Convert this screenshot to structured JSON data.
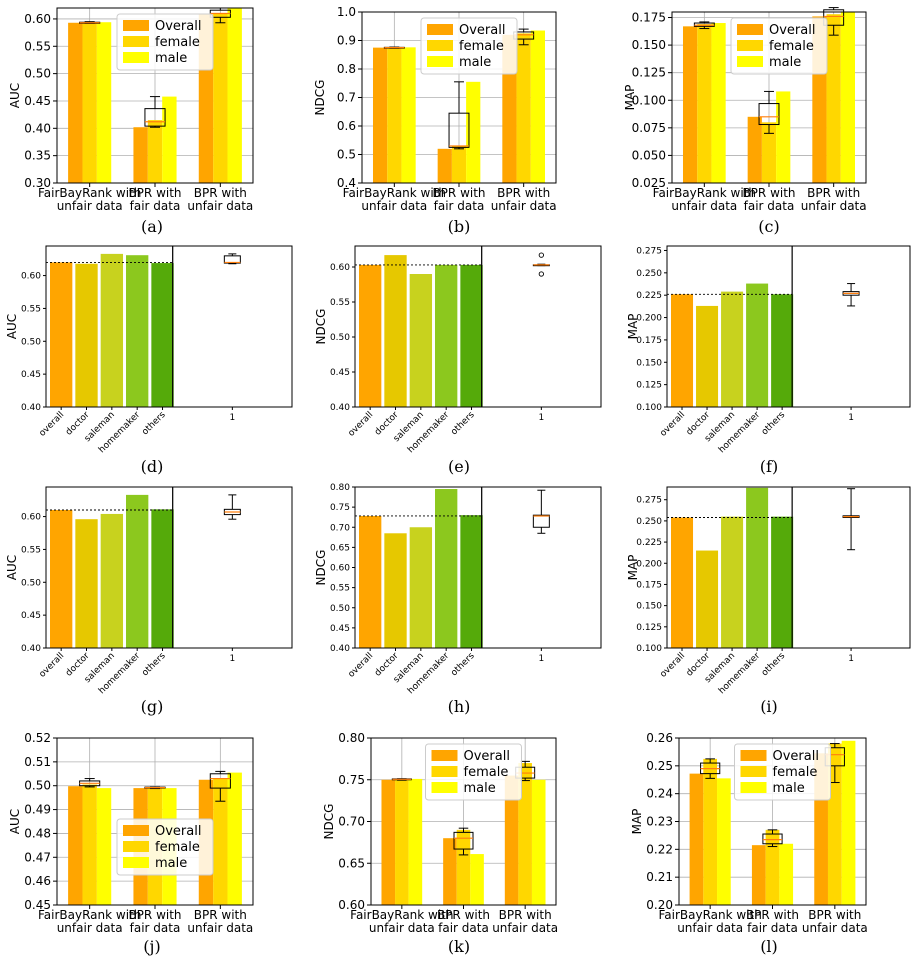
{
  "colors": {
    "overall": "#FFA500",
    "female": "#FFD700",
    "male": "#FFFF00",
    "occupation_bars": [
      "#FFA500",
      "#E6C800",
      "#C8D21E",
      "#8CC81E",
      "#55AA0A"
    ],
    "median": "#FF7F0E"
  },
  "chart_data": [
    {
      "id": "a",
      "caption": "(a)",
      "type": "bar",
      "variant": "gender",
      "ylabel": "AUC",
      "ylim": [
        0.3,
        0.62
      ],
      "yticks": [
        "0.30",
        "0.35",
        "0.40",
        "0.45",
        "0.50",
        "0.55",
        "0.60"
      ],
      "categories": [
        "FairBayRank with\nunfair data",
        "BPR with\nfair data",
        "BPR with\nunfair data"
      ],
      "series": [
        {
          "name": "Overall",
          "values": [
            0.593,
            0.402,
            0.608
          ]
        },
        {
          "name": "female",
          "values": [
            0.594,
            0.415,
            0.611
          ]
        },
        {
          "name": "male",
          "values": [
            0.594,
            0.458,
            0.62
          ]
        }
      ],
      "boxes": [
        [
          0.592,
          0.592,
          0.593,
          0.594,
          0.595
        ],
        [
          0.402,
          0.404,
          0.412,
          0.436,
          0.458
        ],
        [
          0.593,
          0.603,
          0.61,
          0.616,
          0.62
        ]
      ],
      "legend": "top-center"
    },
    {
      "id": "b",
      "caption": "(b)",
      "type": "bar",
      "variant": "gender",
      "ylabel": "NDCG",
      "ylim": [
        0.4,
        1.0
      ],
      "yticks": [
        "0.4",
        "0.5",
        "0.6",
        "0.7",
        "0.8",
        "0.9",
        "1.0"
      ],
      "categories": [
        "FairBayRank with\nunfair data",
        "BPR with\nfair data",
        "BPR with\nunfair data"
      ],
      "series": [
        {
          "name": "Overall",
          "values": [
            0.875,
            0.52,
            0.92
          ]
        },
        {
          "name": "female",
          "values": [
            0.875,
            0.53,
            0.925
          ]
        },
        {
          "name": "male",
          "values": [
            0.876,
            0.755,
            0.935
          ]
        }
      ],
      "boxes": [
        [
          0.873,
          0.874,
          0.875,
          0.876,
          0.877
        ],
        [
          0.52,
          0.525,
          0.53,
          0.645,
          0.755
        ],
        [
          0.885,
          0.905,
          0.92,
          0.93,
          0.94
        ]
      ],
      "legend": "top-center"
    },
    {
      "id": "c",
      "caption": "(c)",
      "type": "bar",
      "variant": "gender",
      "ylabel": "MAP",
      "ylim": [
        0.025,
        0.18
      ],
      "yticks": [
        "0.025",
        "0.050",
        "0.075",
        "0.100",
        "0.125",
        "0.150",
        "0.175"
      ],
      "categories": [
        "FairBayRank with\nunfair data",
        "BPR with\nfair data",
        "BPR with\nunfair data"
      ],
      "series": [
        {
          "name": "Overall",
          "values": [
            0.167,
            0.085,
            0.176
          ]
        },
        {
          "name": "female",
          "values": [
            0.169,
            0.08,
            0.178
          ]
        },
        {
          "name": "male",
          "values": [
            0.17,
            0.108,
            0.185
          ]
        }
      ],
      "boxes": [
        [
          0.165,
          0.167,
          0.168,
          0.17,
          0.171
        ],
        [
          0.07,
          0.078,
          0.085,
          0.097,
          0.108
        ],
        [
          0.159,
          0.168,
          0.176,
          0.182,
          0.184
        ]
      ],
      "legend": "top-center"
    },
    {
      "id": "d",
      "caption": "(d)",
      "type": "bar",
      "variant": "occupation",
      "ylabel": "AUC",
      "ylim": [
        0.4,
        0.645
      ],
      "yticks": [
        "0.40",
        "0.45",
        "0.50",
        "0.55",
        "0.60"
      ],
      "categories": [
        "overall",
        "doctor",
        "saleman",
        "homemaker",
        "others"
      ],
      "values": [
        0.62,
        0.618,
        0.633,
        0.631,
        0.619
      ],
      "box": [
        0.618,
        0.619,
        0.62,
        0.63,
        0.633
      ],
      "box_label": "1"
    },
    {
      "id": "e",
      "caption": "(e)",
      "type": "bar",
      "variant": "occupation",
      "ylabel": "NDCG",
      "ylim": [
        0.4,
        0.63
      ],
      "yticks": [
        "0.40",
        "0.45",
        "0.50",
        "0.55",
        "0.60"
      ],
      "categories": [
        "overall",
        "doctor",
        "saleman",
        "homemaker",
        "others"
      ],
      "values": [
        0.603,
        0.617,
        0.59,
        0.603,
        0.603
      ],
      "box": [
        0.602,
        0.602,
        0.603,
        0.603,
        0.604
      ],
      "outliers": [
        0.617,
        0.59
      ],
      "box_label": "1"
    },
    {
      "id": "f",
      "caption": "(f)",
      "type": "bar",
      "variant": "occupation",
      "ylabel": "MAP",
      "ylim": [
        0.1,
        0.28
      ],
      "yticks": [
        "0.100",
        "0.125",
        "0.150",
        "0.175",
        "0.200",
        "0.225",
        "0.250",
        "0.275"
      ],
      "categories": [
        "overall",
        "doctor",
        "saleman",
        "homemaker",
        "others"
      ],
      "values": [
        0.226,
        0.213,
        0.229,
        0.238,
        0.226
      ],
      "box": [
        0.213,
        0.225,
        0.227,
        0.229,
        0.238
      ],
      "box_label": "1"
    },
    {
      "id": "g",
      "caption": "(g)",
      "type": "bar",
      "variant": "occupation",
      "ylabel": "AUC",
      "ylim": [
        0.4,
        0.645
      ],
      "yticks": [
        "0.40",
        "0.45",
        "0.50",
        "0.55",
        "0.60"
      ],
      "categories": [
        "overall",
        "doctor",
        "saleman",
        "homemaker",
        "others"
      ],
      "values": [
        0.61,
        0.596,
        0.604,
        0.633,
        0.611
      ],
      "box": [
        0.596,
        0.603,
        0.607,
        0.611,
        0.633
      ],
      "box_label": "1"
    },
    {
      "id": "h",
      "caption": "(h)",
      "type": "bar",
      "variant": "occupation",
      "ylabel": "NDCG",
      "ylim": [
        0.4,
        0.8
      ],
      "yticks": [
        "0.40",
        "0.45",
        "0.50",
        "0.55",
        "0.60",
        "0.65",
        "0.70",
        "0.75",
        "0.80"
      ],
      "categories": [
        "overall",
        "doctor",
        "saleman",
        "homemaker",
        "others"
      ],
      "values": [
        0.728,
        0.685,
        0.7,
        0.795,
        0.73
      ],
      "box": [
        0.685,
        0.7,
        0.728,
        0.73,
        0.792
      ],
      "box_label": "1"
    },
    {
      "id": "i",
      "caption": "(i)",
      "type": "bar",
      "variant": "occupation",
      "ylabel": "MAP",
      "ylim": [
        0.1,
        0.29
      ],
      "yticks": [
        "0.100",
        "0.125",
        "0.150",
        "0.175",
        "0.200",
        "0.225",
        "0.250",
        "0.275"
      ],
      "categories": [
        "overall",
        "doctor",
        "saleman",
        "homemaker",
        "others"
      ],
      "values": [
        0.254,
        0.215,
        0.255,
        0.289,
        0.255
      ],
      "box": [
        0.216,
        0.254,
        0.255,
        0.256,
        0.288
      ],
      "box_label": "1"
    },
    {
      "id": "j",
      "caption": "(j)",
      "type": "bar",
      "variant": "gender",
      "ylabel": "AUC",
      "ylim": [
        0.45,
        0.52
      ],
      "yticks": [
        "0.45",
        "0.46",
        "0.47",
        "0.48",
        "0.49",
        "0.50",
        "0.51",
        "0.52"
      ],
      "categories": [
        "FairBayRank with\nunfair data",
        "BPR with\nfair data",
        "BPR with\nunfair data"
      ],
      "series": [
        {
          "name": "Overall",
          "values": [
            0.4998,
            0.499,
            0.5025
          ]
        },
        {
          "name": "female",
          "values": [
            0.5005,
            0.4992,
            0.503
          ]
        },
        {
          "name": "male",
          "values": [
            0.499,
            0.499,
            0.5055
          ]
        }
      ],
      "boxes": [
        [
          0.4995,
          0.5,
          0.501,
          0.502,
          0.503
        ],
        [
          0.4988,
          0.499,
          0.4992,
          0.4994,
          0.4995
        ],
        [
          0.4935,
          0.499,
          0.503,
          0.505,
          0.506
        ]
      ],
      "legend": "bottom-center"
    },
    {
      "id": "k",
      "caption": "(k)",
      "type": "bar",
      "variant": "gender",
      "ylabel": "NDCG",
      "ylim": [
        0.6,
        0.8
      ],
      "yticks": [
        "0.60",
        "0.65",
        "0.70",
        "0.75",
        "0.80"
      ],
      "categories": [
        "FairBayRank with\nunfair data",
        "BPR with\nfair data",
        "BPR with\nunfair data"
      ],
      "series": [
        {
          "name": "Overall",
          "values": [
            0.75,
            0.68,
            0.755
          ]
        },
        {
          "name": "female",
          "values": [
            0.75,
            0.69,
            0.77
          ]
        },
        {
          "name": "male",
          "values": [
            0.751,
            0.661,
            0.75
          ]
        }
      ],
      "boxes": [
        [
          0.7495,
          0.75,
          0.7505,
          0.751,
          0.7512
        ],
        [
          0.66,
          0.667,
          0.68,
          0.687,
          0.692
        ],
        [
          0.749,
          0.752,
          0.758,
          0.765,
          0.772
        ]
      ],
      "legend": "top-center"
    },
    {
      "id": "l",
      "caption": "(l)",
      "type": "bar",
      "variant": "gender",
      "ylabel": "MAP",
      "ylim": [
        0.2,
        0.26
      ],
      "yticks": [
        "0.20",
        "0.21",
        "0.22",
        "0.23",
        "0.24",
        "0.25",
        "0.26"
      ],
      "categories": [
        "FairBayRank with\nunfair data",
        "BPR with\nfair data",
        "BPR with\nunfair data"
      ],
      "series": [
        {
          "name": "Overall",
          "values": [
            0.2472,
            0.2215,
            0.2545
          ]
        },
        {
          "name": "female",
          "values": [
            0.2525,
            0.227,
            0.258
          ]
        },
        {
          "name": "male",
          "values": [
            0.2455,
            0.222,
            0.259
          ]
        }
      ],
      "boxes": [
        [
          0.2455,
          0.2472,
          0.249,
          0.251,
          0.2525
        ],
        [
          0.221,
          0.222,
          0.2235,
          0.2255,
          0.227
        ],
        [
          0.244,
          0.25,
          0.254,
          0.2565,
          0.258
        ]
      ],
      "legend": "top-center"
    }
  ]
}
